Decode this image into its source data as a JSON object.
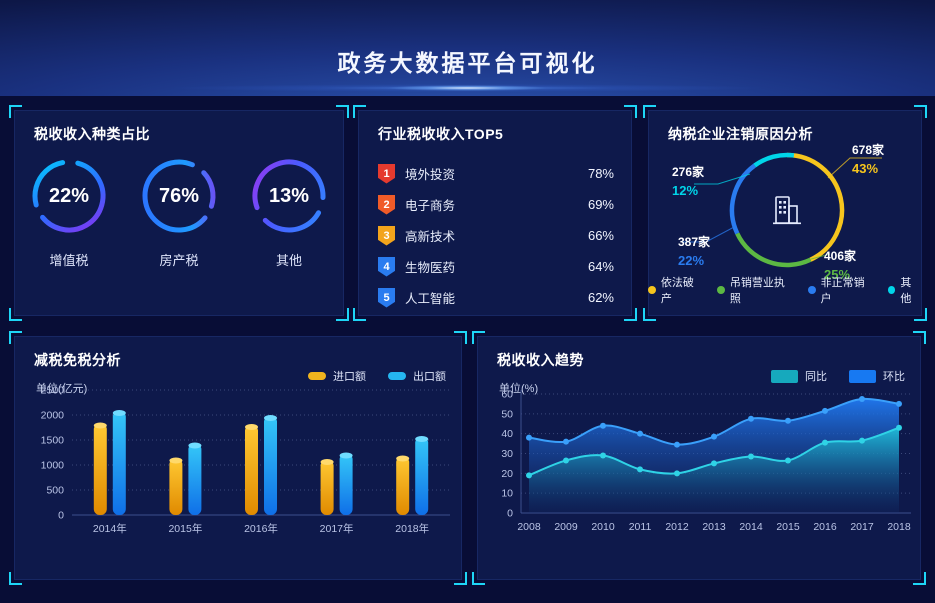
{
  "header": {
    "title": "政务大数据平台可视化"
  },
  "panels": {
    "tax_type": {
      "title": "税收收入种类占比",
      "items": [
        {
          "value": "22%",
          "label": "增值税"
        },
        {
          "value": "76%",
          "label": "房产税"
        },
        {
          "value": "13%",
          "label": "其他"
        }
      ]
    },
    "industry_top5": {
      "title": "行业税收收入TOP5",
      "items": [
        {
          "rank": "1",
          "label": "境外投资",
          "value": "78%",
          "badge_color": "#e53a2e"
        },
        {
          "rank": "2",
          "label": "电子商务",
          "value": "69%",
          "badge_color": "#f05b28"
        },
        {
          "rank": "3",
          "label": "高新技术",
          "value": "66%",
          "badge_color": "#f3a41c"
        },
        {
          "rank": "4",
          "label": "生物医药",
          "value": "64%",
          "badge_color": "#2a7cf0"
        },
        {
          "rank": "5",
          "label": "人工智能",
          "value": "62%",
          "badge_color": "#2a7cf0"
        }
      ]
    },
    "cancel_reason": {
      "title": "纳税企业注销原因分析",
      "segments": [
        {
          "label": "依法破产",
          "count": "678家",
          "percent": "43%",
          "color": "#f6c51d"
        },
        {
          "label": "吊销营业执照",
          "count": "406家",
          "percent": "25%",
          "color": "#5cb843"
        },
        {
          "label": "非正常销户",
          "count": "387家",
          "percent": "22%",
          "color": "#2a7cf0"
        },
        {
          "label": "其他",
          "count": "276家",
          "percent": "12%",
          "color": "#00d5e9"
        }
      ]
    },
    "tax_reduction": {
      "title": "减税免税分析",
      "unit": "单位(亿元)",
      "legend": [
        {
          "label": "进口额",
          "color": "#f0b41e"
        },
        {
          "label": "出口额",
          "color": "#25b6f0"
        }
      ]
    },
    "tax_trend": {
      "title": "税收收入趋势",
      "unit": "单位(%)",
      "legend": [
        {
          "label": "同比",
          "color": "#16a9bd"
        },
        {
          "label": "环比",
          "color": "#1779f2"
        }
      ]
    }
  },
  "chart_data": [
    {
      "type": "pie",
      "variant": "percent-rings",
      "title": "税收收入种类占比",
      "categories": [
        "增值税",
        "房产税",
        "其他"
      ],
      "values": [
        22,
        76,
        13
      ],
      "unit": "%"
    },
    {
      "type": "bar",
      "variant": "horizontal",
      "title": "行业税收收入TOP5",
      "categories": [
        "境外投资",
        "电子商务",
        "高新技术",
        "生物医药",
        "人工智能"
      ],
      "values": [
        78,
        69,
        66,
        64,
        62
      ],
      "unit": "%",
      "xlim": [
        0,
        100
      ]
    },
    {
      "type": "pie",
      "variant": "donut",
      "title": "纳税企业注销原因分析",
      "categories": [
        "依法破产",
        "吊销营业执照",
        "非正常销户",
        "其他"
      ],
      "values": [
        43,
        25,
        22,
        12
      ],
      "counts": [
        678,
        406,
        387,
        276
      ],
      "unit": "%",
      "colors": [
        "#f6c51d",
        "#5cb843",
        "#2a7cf0",
        "#00d5e9"
      ],
      "legend_position": "bottom"
    },
    {
      "type": "bar",
      "title": "减税免税分析",
      "categories": [
        "2014年",
        "2015年",
        "2016年",
        "2017年",
        "2018年"
      ],
      "series": [
        {
          "name": "进口额",
          "values": [
            1830,
            1130,
            1800,
            1100,
            1170
          ]
        },
        {
          "name": "出口额",
          "values": [
            2080,
            1430,
            1980,
            1230,
            1560
          ]
        }
      ],
      "ylabel": "单位(亿元)",
      "ylim": [
        0,
        2500
      ],
      "ytick_step": 500,
      "grid": "dotted",
      "legend_position": "top-right"
    },
    {
      "type": "area",
      "title": "税收收入趋势",
      "x": [
        2008,
        2009,
        2010,
        2011,
        2012,
        2013,
        2014,
        2015,
        2016,
        2017,
        2018
      ],
      "series": [
        {
          "name": "同比",
          "values": [
            19,
            26.5,
            29,
            22,
            20,
            25,
            28.5,
            26.5,
            35.5,
            36.5,
            43
          ]
        },
        {
          "name": "环比",
          "values": [
            38,
            36,
            44,
            40,
            34.5,
            38.5,
            47.5,
            46.5,
            51.5,
            57.5,
            55
          ]
        }
      ],
      "ylabel": "单位(%)",
      "ylim": [
        0,
        60
      ],
      "ytick_step": 10,
      "grid": "dotted",
      "legend_position": "top-right"
    }
  ]
}
